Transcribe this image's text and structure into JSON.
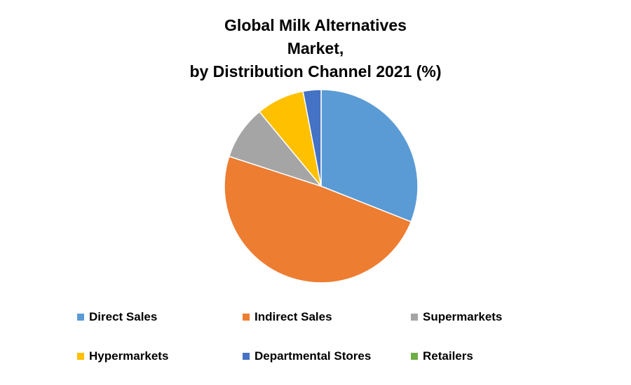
{
  "title": {
    "line1": "Global Milk Alternatives",
    "line2": "Market,",
    "line3": "by Distribution Channel 2021 (%)"
  },
  "chart_data": {
    "type": "pie",
    "title": "Global Milk Alternatives Market, by Distribution Channel 2021 (%)",
    "labels": [
      "Direct Sales",
      "Indirect Sales",
      "Supermarkets",
      "Hypermarkets",
      "Departmental Stores",
      "Retailers"
    ],
    "values": [
      31,
      49,
      9,
      8,
      3,
      0
    ],
    "colors": [
      "#5B9BD5",
      "#ED7D31",
      "#A5A5A5",
      "#FFC000",
      "#4472C4",
      "#70AD47"
    ],
    "start_angle_deg": 0,
    "direction": "clockwise",
    "legend_position": "bottom",
    "slice_border_color": "#FFFFFF"
  },
  "legend": {
    "items": [
      {
        "label": "Direct Sales",
        "color": "#5B9BD5"
      },
      {
        "label": "Indirect Sales",
        "color": "#ED7D31"
      },
      {
        "label": "Supermarkets",
        "color": "#A5A5A5"
      },
      {
        "label": "Hypermarkets",
        "color": "#FFC000"
      },
      {
        "label": "Departmental Stores",
        "color": "#4472C4"
      },
      {
        "label": "Retailers",
        "color": "#70AD47"
      }
    ]
  }
}
